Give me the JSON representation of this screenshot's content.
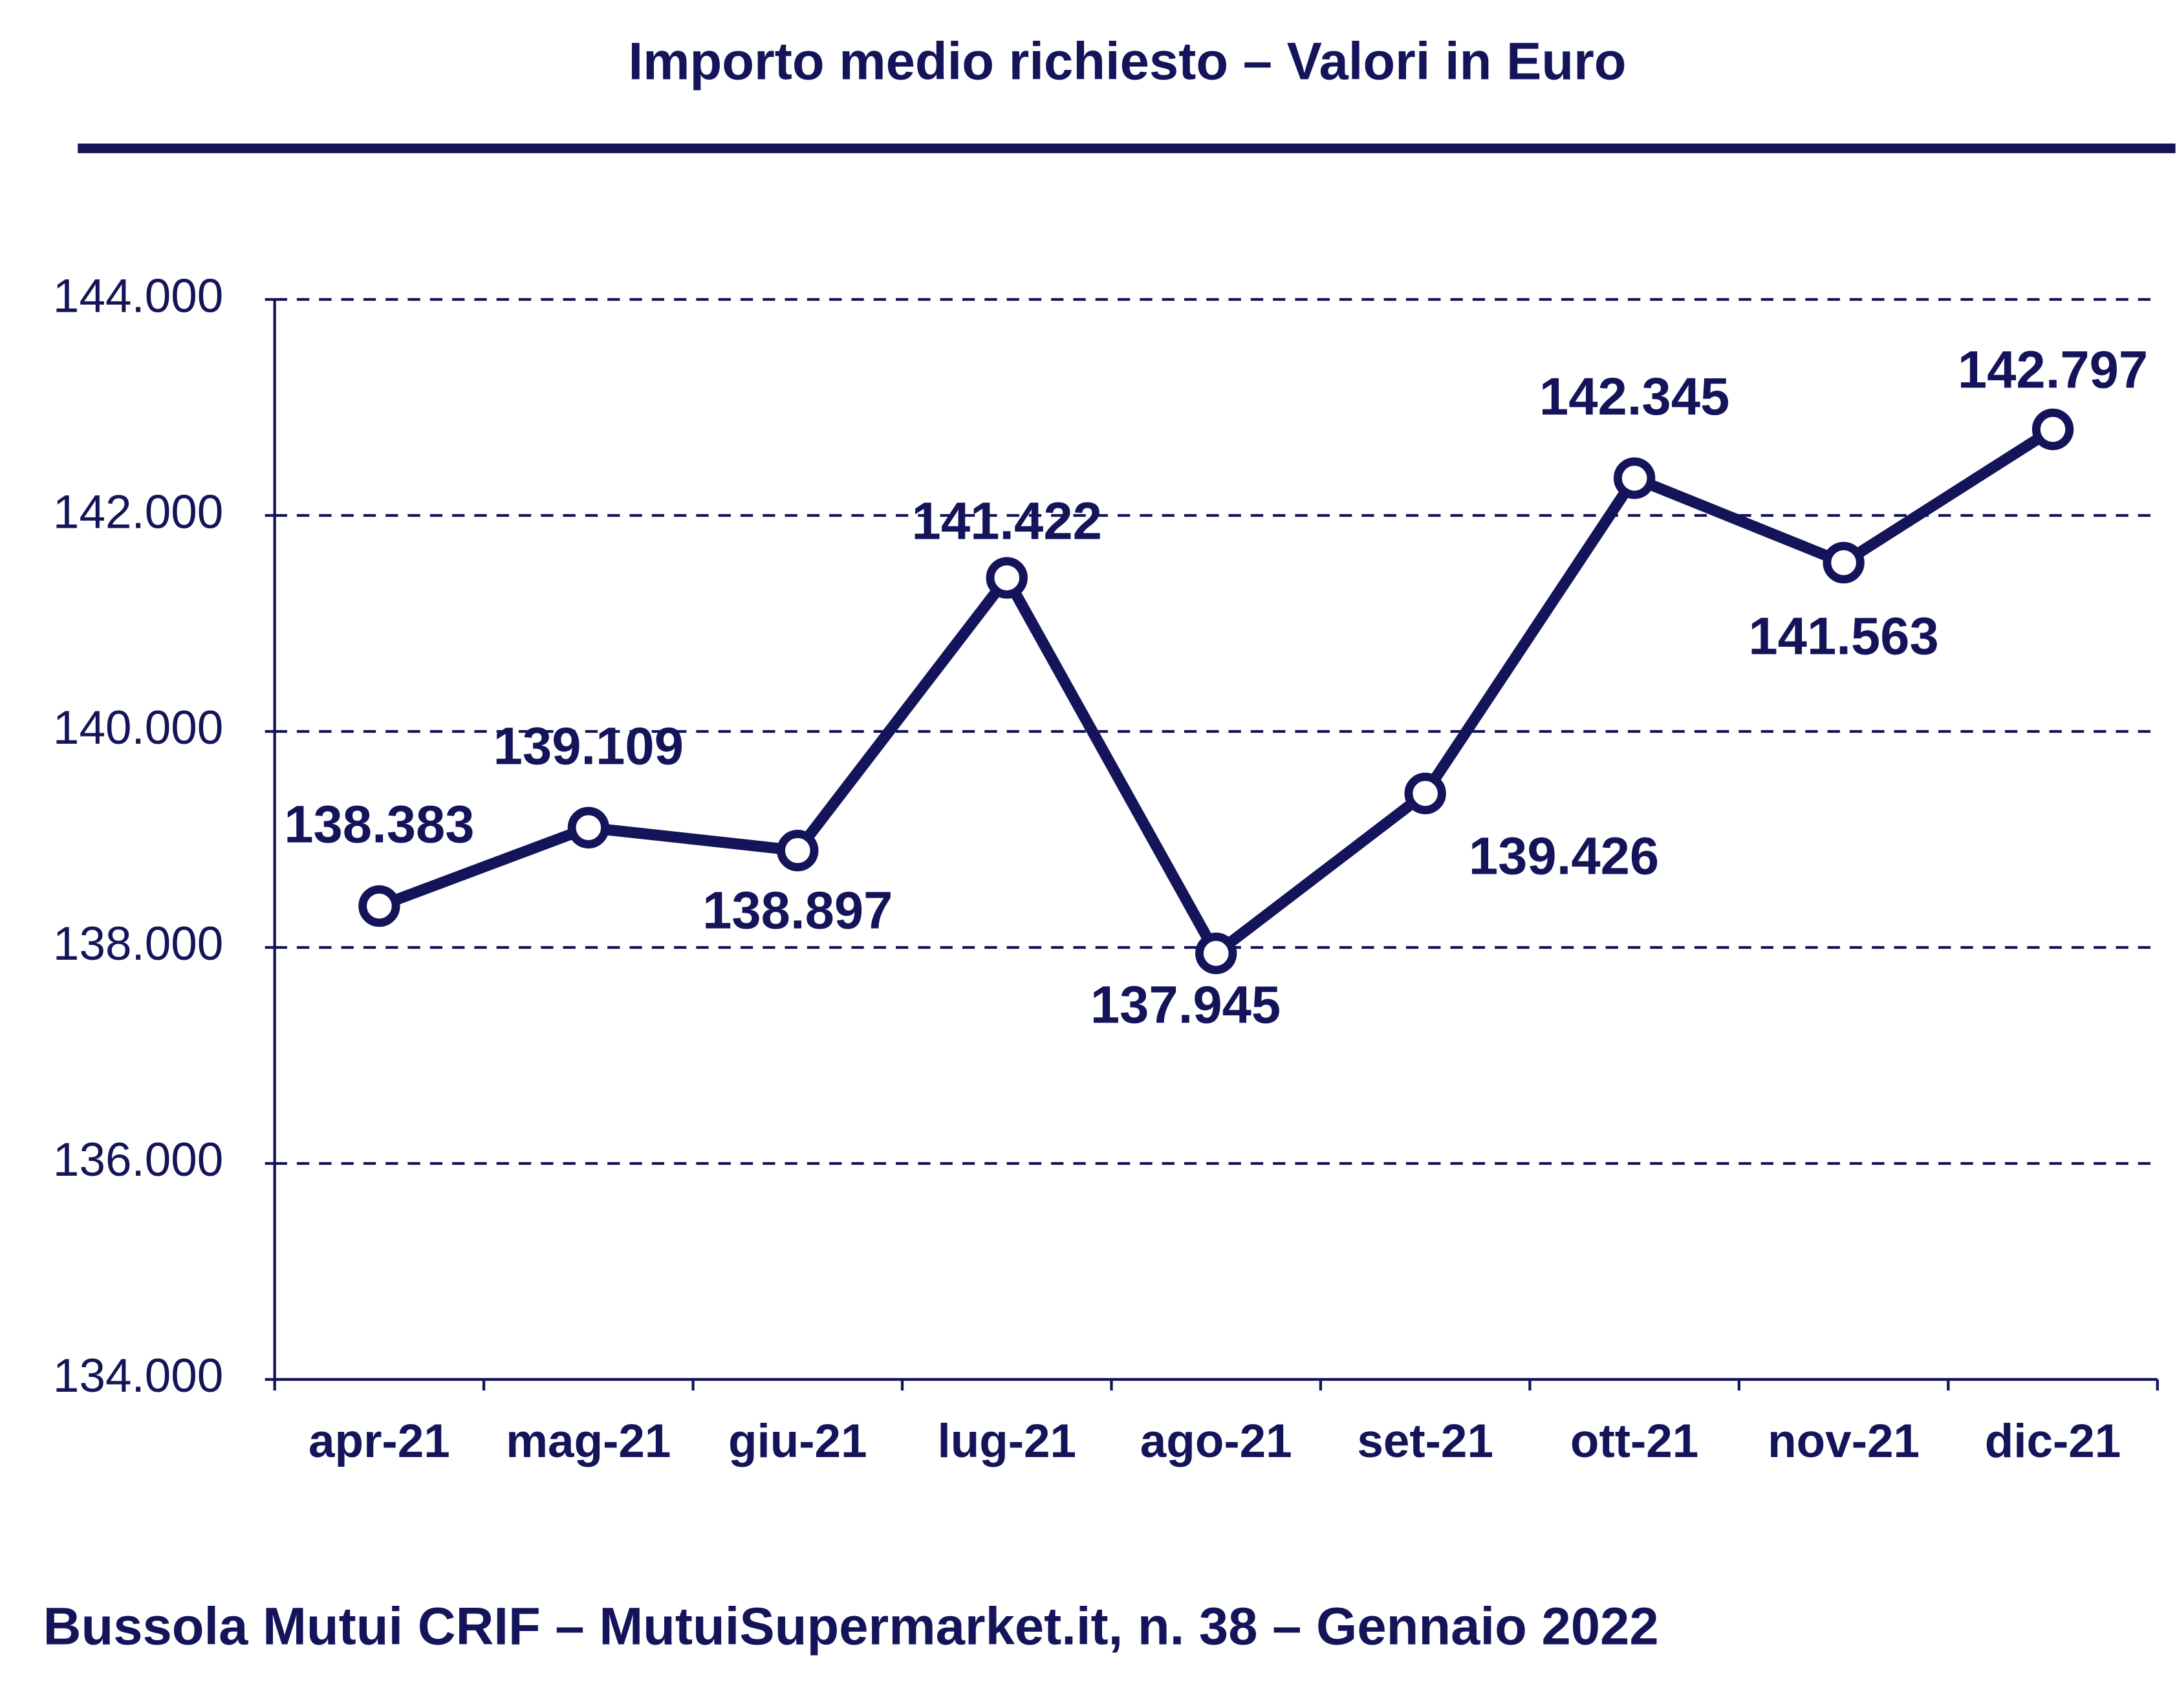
{
  "chart_data": {
    "type": "line",
    "title": "Importo medio richiesto – Valori in Euro",
    "footer": "Bussola Mutui CRIF – MutuiSupermarket.it, n. 38 – Gennaio 2022",
    "categories": [
      "apr-21",
      "mag-21",
      "giu-21",
      "lug-21",
      "ago-21",
      "set-21",
      "ott-21",
      "nov-21",
      "dic-21"
    ],
    "values": [
      138383,
      139109,
      138897,
      141422,
      137945,
      139426,
      142345,
      141563,
      142797
    ],
    "value_labels": [
      "138.383",
      "139.109",
      "138.897",
      "141.422",
      "137.945",
      "139.426",
      "142.345",
      "141.563",
      "142.797"
    ],
    "color": "#14145a",
    "ylim": [
      134000,
      144000
    ],
    "yticks": [
      {
        "value": 134000,
        "label": "134.000"
      },
      {
        "value": 136000,
        "label": "136.000"
      },
      {
        "value": 138000,
        "label": "138.000"
      },
      {
        "value": 140000,
        "label": "140.000"
      },
      {
        "value": 142000,
        "label": "142.000"
      },
      {
        "value": 144000,
        "label": "144.000"
      }
    ],
    "grid": true
  }
}
